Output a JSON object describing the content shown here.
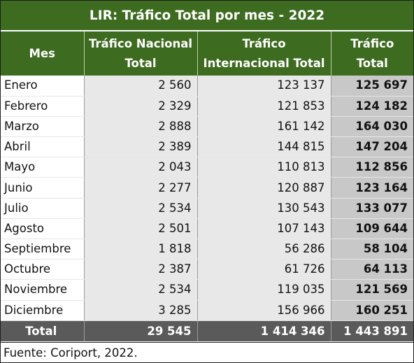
{
  "title": "LIR: Tráfico Total por mes - 2022",
  "headers": {
    "mes": "Mes",
    "nacional": "Tráfico Nacional Total",
    "internacional": "Tráfico Internacional Total",
    "total": "Tráfico Total"
  },
  "rows": [
    {
      "mes": "Enero",
      "nacional": "2 560",
      "internacional": "123 137",
      "total": "125 697"
    },
    {
      "mes": "Febrero",
      "nacional": "2 329",
      "internacional": "121 853",
      "total": "124 182"
    },
    {
      "mes": "Marzo",
      "nacional": "2 888",
      "internacional": "161 142",
      "total": "164 030"
    },
    {
      "mes": "Abril",
      "nacional": "2 389",
      "internacional": "144 815",
      "total": "147 204"
    },
    {
      "mes": "Mayo",
      "nacional": "2 043",
      "internacional": "110 813",
      "total": "112 856"
    },
    {
      "mes": "Junio",
      "nacional": "2 277",
      "internacional": "120 887",
      "total": "123 164"
    },
    {
      "mes": "Julio",
      "nacional": "2 534",
      "internacional": "130 543",
      "total": "133 077"
    },
    {
      "mes": "Agosto",
      "nacional": "2 501",
      "internacional": "107 143",
      "total": "109 644"
    },
    {
      "mes": "Septiembre",
      "nacional": "1 818",
      "internacional": "56 286",
      "total": "58 104"
    },
    {
      "mes": "Octubre",
      "nacional": "2 387",
      "internacional": "61 726",
      "total": "64 113"
    },
    {
      "mes": "Noviembre",
      "nacional": "2 534",
      "internacional": "119 035",
      "total": "121 569"
    },
    {
      "mes": "Diciembre",
      "nacional": "3 285",
      "internacional": "156 966",
      "total": "160 251"
    }
  ],
  "totals": {
    "label": "Total",
    "nacional": "29 545",
    "internacional": "1 414 346",
    "total": "1 443 891"
  },
  "source": "Fuente: Coriport, 2022.",
  "colors": {
    "header_green": "#3d6b1f",
    "total_row": "#5a5a5a",
    "num_cell": "#e8e8e8",
    "total_cell": "#c8c8c8"
  }
}
